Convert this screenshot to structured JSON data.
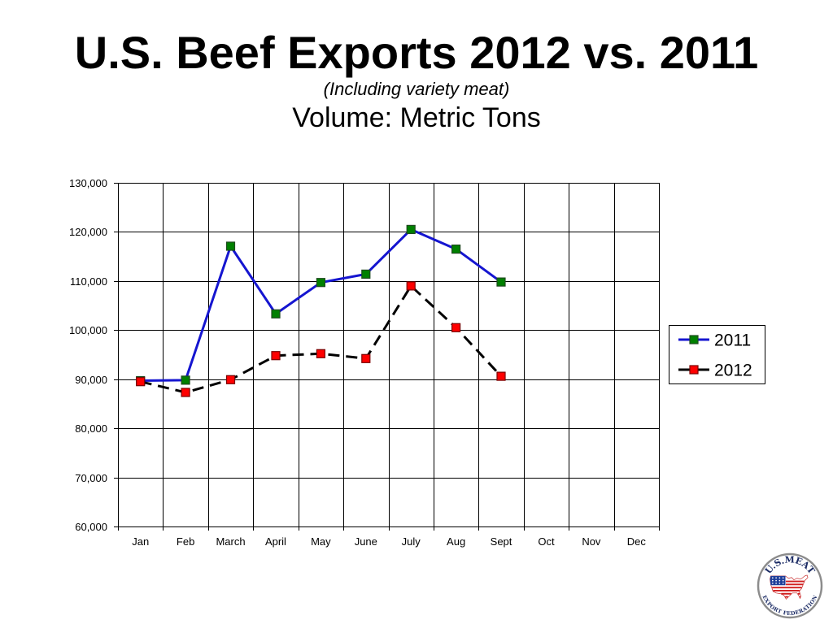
{
  "chart_data": {
    "type": "line",
    "title": "U.S. Beef Exports 2012 vs. 2011",
    "subtitle": "(Including variety meat)",
    "unit_label": "Volume: Metric Tons",
    "categories": [
      "Jan",
      "Feb",
      "March",
      "April",
      "May",
      "June",
      "July",
      "Aug",
      "Sept",
      "Oct",
      "Nov",
      "Dec"
    ],
    "ylim": [
      60000,
      130000
    ],
    "yticks": [
      60000,
      70000,
      80000,
      90000,
      100000,
      110000,
      120000,
      130000
    ],
    "ytick_labels": [
      "60,000",
      "70,000",
      "80,000",
      "90,000",
      "100,000",
      "110,000",
      "120,000",
      "130,000"
    ],
    "grid": true,
    "legend": "right",
    "series": [
      {
        "name": "2011",
        "line_color": "#1515d0",
        "marker_color": "#008000",
        "marker_edge_color": "#1e4a1e",
        "dashed": false,
        "values": [
          89700,
          89800,
          117100,
          103300,
          109700,
          111400,
          120500,
          116500,
          109800,
          null,
          null,
          null
        ]
      },
      {
        "name": "2012",
        "line_color": "#000000",
        "marker_color": "#ff0000",
        "marker_edge_color": "#7a0000",
        "dashed": true,
        "values": [
          89500,
          87300,
          89900,
          94800,
          95200,
          94200,
          109000,
          100500,
          90600,
          null,
          null,
          null
        ]
      }
    ]
  },
  "logo": {
    "top_text": "U.S.MEAT",
    "bottom_text": "EXPORT FEDERATION"
  }
}
